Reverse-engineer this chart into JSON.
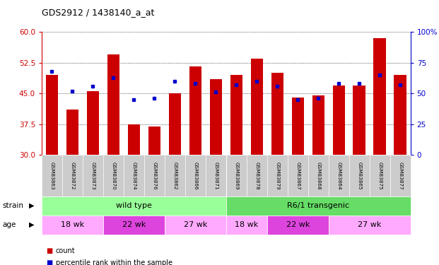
{
  "title": "GDS2912 / 1438140_a_at",
  "samples": [
    "GSM83863",
    "GSM83872",
    "GSM83873",
    "GSM83870",
    "GSM83874",
    "GSM83876",
    "GSM83862",
    "GSM83866",
    "GSM83871",
    "GSM83869",
    "GSM83878",
    "GSM83879",
    "GSM83867",
    "GSM83868",
    "GSM83864",
    "GSM83865",
    "GSM83875",
    "GSM83877"
  ],
  "bar_values": [
    49.5,
    41.0,
    45.5,
    54.5,
    37.5,
    37.0,
    45.0,
    51.5,
    48.5,
    49.5,
    53.5,
    50.0,
    44.0,
    44.5,
    47.0,
    47.0,
    58.5,
    49.5
  ],
  "percentile_values": [
    68,
    52,
    56,
    63,
    45,
    46,
    60,
    58,
    51,
    57,
    60,
    56,
    45,
    46,
    58,
    58,
    65,
    57
  ],
  "ymin": 30,
  "ymax": 60,
  "yticks": [
    30,
    37.5,
    45,
    52.5,
    60
  ],
  "right_yticks": [
    0,
    25,
    50,
    75,
    100
  ],
  "bar_color": "#cc0000",
  "dot_color": "#0000cc",
  "plot_bg": "#ffffff",
  "axis_color_left": "#cc0000",
  "axis_color_right": "#0000cc",
  "strain_groups": [
    {
      "label": "wild type",
      "start": 0,
      "end": 9,
      "color": "#99ff99"
    },
    {
      "label": "R6/1 transgenic",
      "start": 9,
      "end": 18,
      "color": "#66dd66"
    }
  ],
  "age_groups": [
    {
      "label": "18 wk",
      "start": 0,
      "end": 3,
      "color": "#ffaaff"
    },
    {
      "label": "22 wk",
      "start": 3,
      "end": 6,
      "color": "#dd44dd"
    },
    {
      "label": "27 wk",
      "start": 6,
      "end": 9,
      "color": "#ffaaff"
    },
    {
      "label": "18 wk",
      "start": 9,
      "end": 11,
      "color": "#ffaaff"
    },
    {
      "label": "22 wk",
      "start": 11,
      "end": 14,
      "color": "#dd44dd"
    },
    {
      "label": "27 wk",
      "start": 14,
      "end": 18,
      "color": "#ffaaff"
    }
  ],
  "legend_count_color": "#cc0000",
  "legend_pct_color": "#0000cc",
  "bar_width": 0.6,
  "separator_col": 9
}
